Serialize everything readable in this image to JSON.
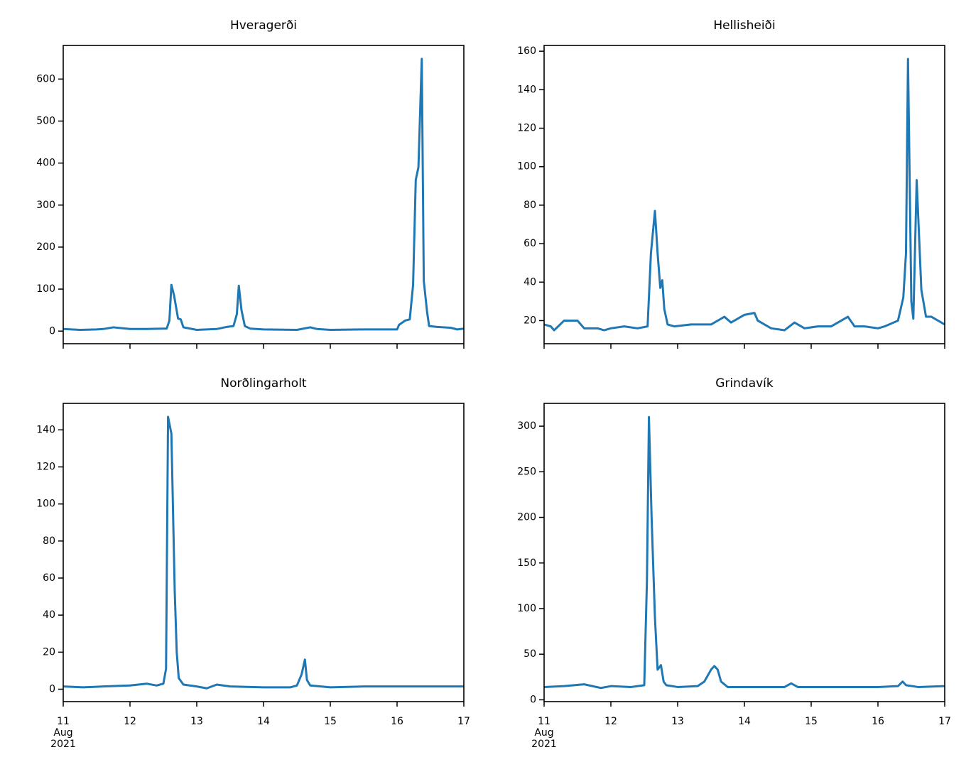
{
  "chart_data": [
    {
      "type": "line",
      "title": "Hveragerði",
      "color": "#1f77b4",
      "x_tick_labels": false,
      "x": [
        11,
        11.25,
        11.5,
        11.6,
        11.75,
        12,
        12.25,
        12.5,
        12.55,
        12.59,
        12.62,
        12.66,
        12.72,
        12.76,
        12.8,
        13,
        13.3,
        13.45,
        13.55,
        13.6,
        13.63,
        13.67,
        13.72,
        13.8,
        14,
        14.5,
        14.7,
        14.8,
        15,
        15.5,
        16,
        16.03,
        16.12,
        16.19,
        16.24,
        16.28,
        16.32,
        16.37,
        16.4,
        16.45,
        16.48,
        16.6,
        16.8,
        16.9,
        17
      ],
      "values": [
        5,
        3,
        4,
        5,
        9,
        5,
        5,
        6,
        6,
        25,
        110,
        85,
        30,
        28,
        9,
        3,
        5,
        10,
        12,
        40,
        108,
        50,
        12,
        6,
        4,
        3,
        9,
        5,
        3,
        4,
        4,
        15,
        25,
        28,
        110,
        360,
        390,
        648,
        120,
        45,
        12,
        10,
        8,
        4,
        6
      ],
      "xlim": [
        11,
        17
      ],
      "xticks": [
        11,
        12,
        13,
        14,
        15,
        16,
        17
      ],
      "ylim": [
        -30,
        680
      ],
      "yticks": [
        0,
        100,
        200,
        300,
        400,
        500,
        600
      ]
    },
    {
      "type": "line",
      "title": "Hellisheiði",
      "color": "#1f77b4",
      "x_tick_labels": false,
      "x": [
        11,
        11.1,
        11.15,
        11.3,
        11.4,
        11.5,
        11.6,
        11.65,
        11.8,
        11.9,
        12,
        12.2,
        12.4,
        12.55,
        12.6,
        12.66,
        12.7,
        12.74,
        12.77,
        12.8,
        12.85,
        12.95,
        13.2,
        13.5,
        13.7,
        13.8,
        14,
        14.15,
        14.2,
        14.4,
        14.6,
        14.75,
        14.9,
        15.1,
        15.3,
        15.55,
        15.65,
        15.8,
        16,
        16.1,
        16.3,
        16.38,
        16.42,
        16.45,
        16.5,
        16.53,
        16.58,
        16.65,
        16.72,
        16.8,
        17
      ],
      "values": [
        18,
        17,
        15,
        20,
        20,
        20,
        16,
        16,
        16,
        15,
        16,
        17,
        16,
        17,
        55,
        77,
        55,
        37,
        41,
        26,
        18,
        17,
        18,
        18,
        22,
        19,
        23,
        24,
        20,
        16,
        15,
        19,
        16,
        17,
        17,
        22,
        17,
        17,
        16,
        17,
        20,
        32,
        55,
        156,
        30,
        21,
        93,
        36,
        22,
        22,
        18
      ],
      "xlim": [
        11,
        17
      ],
      "xticks": [
        11,
        12,
        13,
        14,
        15,
        16,
        17
      ],
      "ylim": [
        8,
        163
      ],
      "yticks": [
        20,
        40,
        60,
        80,
        100,
        120,
        140,
        160
      ]
    },
    {
      "type": "line",
      "title": "Norðlingarholt",
      "color": "#1f77b4",
      "x_tick_labels": true,
      "x": [
        11,
        11.3,
        11.6,
        12,
        12.25,
        12.4,
        12.5,
        12.54,
        12.57,
        12.62,
        12.67,
        12.7,
        12.73,
        12.8,
        13,
        13.15,
        13.3,
        13.5,
        14,
        14.4,
        14.5,
        14.57,
        14.62,
        14.65,
        14.7,
        15,
        15.5,
        16,
        16.5,
        17
      ],
      "values": [
        1.5,
        1,
        1.5,
        2,
        3,
        2,
        3,
        11,
        147,
        138,
        53,
        20,
        6,
        2.5,
        1.5,
        0.5,
        2.5,
        1.5,
        1,
        1,
        2,
        8,
        16,
        5,
        2,
        1,
        1.5,
        1.5,
        1.5,
        1.5
      ],
      "xlim": [
        11,
        17
      ],
      "xticks": [
        {
          "value": 11,
          "label": "11\nAug\n2021"
        },
        12,
        13,
        14,
        15,
        16,
        17
      ],
      "ylim": [
        -6.7,
        154.3
      ],
      "yticks": [
        0,
        20,
        40,
        60,
        80,
        100,
        120,
        140
      ]
    },
    {
      "type": "line",
      "title": "Grindavík",
      "color": "#1f77b4",
      "x_tick_labels": true,
      "x": [
        11,
        11.3,
        11.6,
        11.85,
        12,
        12.3,
        12.5,
        12.54,
        12.57,
        12.61,
        12.66,
        12.7,
        12.75,
        12.79,
        12.83,
        13,
        13.3,
        13.4,
        13.5,
        13.55,
        13.6,
        13.65,
        13.75,
        14,
        14.6,
        14.7,
        14.8,
        15,
        15.5,
        16,
        16.3,
        16.37,
        16.42,
        16.6,
        17
      ],
      "values": [
        14,
        15,
        17,
        13,
        15,
        14,
        16,
        130,
        310,
        200,
        90,
        33,
        38,
        20,
        16,
        14,
        15,
        20,
        33,
        37,
        33,
        20,
        14,
        14,
        14,
        18,
        14,
        14,
        14,
        14,
        15,
        20,
        16,
        14,
        15
      ],
      "xlim": [
        11,
        17
      ],
      "xticks": [
        {
          "value": 11,
          "label": "11\nAug\n2021"
        },
        12,
        13,
        14,
        15,
        16,
        17
      ],
      "ylim": [
        -2,
        325
      ],
      "yticks": [
        0,
        50,
        100,
        150,
        200,
        250,
        300
      ]
    }
  ]
}
